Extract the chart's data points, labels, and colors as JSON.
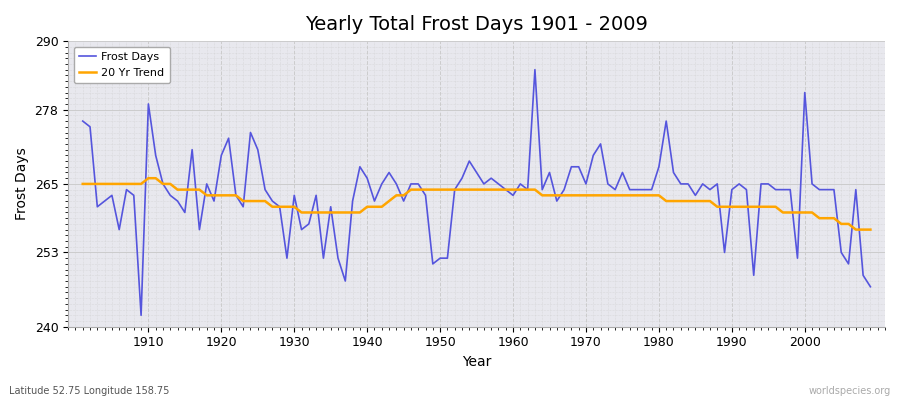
{
  "title": "Yearly Total Frost Days 1901 - 2009",
  "xlabel": "Year",
  "ylabel": "Frost Days",
  "subtitle_left": "Latitude 52.75 Longitude 158.75",
  "subtitle_right": "worldspecies.org",
  "ylim": [
    240,
    290
  ],
  "yticks": [
    240,
    253,
    265,
    278,
    290
  ],
  "line_color": "#5555dd",
  "trend_color": "#FFA500",
  "bg_color": "#e8e8ee",
  "legend_frost": "Frost Days",
  "legend_trend": "20 Yr Trend",
  "years": [
    1901,
    1902,
    1903,
    1904,
    1905,
    1906,
    1907,
    1908,
    1909,
    1910,
    1911,
    1912,
    1913,
    1914,
    1915,
    1916,
    1917,
    1918,
    1919,
    1920,
    1921,
    1922,
    1923,
    1924,
    1925,
    1926,
    1927,
    1928,
    1929,
    1930,
    1931,
    1932,
    1933,
    1934,
    1935,
    1936,
    1937,
    1938,
    1939,
    1940,
    1941,
    1942,
    1943,
    1944,
    1945,
    1946,
    1947,
    1948,
    1949,
    1950,
    1951,
    1952,
    1953,
    1954,
    1955,
    1956,
    1957,
    1958,
    1959,
    1960,
    1961,
    1962,
    1963,
    1964,
    1965,
    1966,
    1967,
    1968,
    1969,
    1970,
    1971,
    1972,
    1973,
    1974,
    1975,
    1976,
    1977,
    1978,
    1979,
    1980,
    1981,
    1982,
    1983,
    1984,
    1985,
    1986,
    1987,
    1988,
    1989,
    1990,
    1991,
    1992,
    1993,
    1994,
    1995,
    1996,
    1997,
    1998,
    1999,
    2000,
    2001,
    2002,
    2003,
    2004,
    2005,
    2006,
    2007,
    2008,
    2009
  ],
  "frost_days": [
    276,
    275,
    261,
    262,
    263,
    257,
    264,
    263,
    242,
    279,
    270,
    265,
    263,
    262,
    260,
    271,
    257,
    265,
    262,
    270,
    273,
    263,
    261,
    274,
    271,
    264,
    262,
    261,
    252,
    263,
    257,
    258,
    263,
    252,
    261,
    252,
    248,
    262,
    268,
    266,
    262,
    265,
    267,
    265,
    262,
    265,
    265,
    263,
    251,
    252,
    252,
    264,
    266,
    269,
    267,
    265,
    266,
    265,
    264,
    263,
    265,
    264,
    285,
    264,
    267,
    262,
    264,
    268,
    268,
    265,
    270,
    272,
    265,
    264,
    267,
    264,
    264,
    264,
    264,
    268,
    276,
    267,
    265,
    265,
    263,
    265,
    264,
    265,
    253,
    264,
    265,
    264,
    249,
    265,
    265,
    264,
    264,
    264,
    252,
    281,
    265,
    264,
    264,
    264,
    253,
    251,
    264,
    249,
    247
  ],
  "trend_years": [
    1901,
    1902,
    1903,
    1904,
    1905,
    1906,
    1907,
    1908,
    1909,
    1910,
    1911,
    1912,
    1913,
    1914,
    1915,
    1916,
    1917,
    1918,
    1919,
    1920,
    1921,
    1922,
    1923,
    1924,
    1925,
    1926,
    1927,
    1928,
    1929,
    1930,
    1931,
    1932,
    1933,
    1934,
    1935,
    1936,
    1937,
    1938,
    1939,
    1940,
    1941,
    1942,
    1943,
    1944,
    1945,
    1946,
    1947,
    1948,
    1949,
    1950,
    1951,
    1952,
    1953,
    1954,
    1955,
    1956,
    1957,
    1958,
    1959,
    1960,
    1961,
    1962,
    1963,
    1964,
    1965,
    1966,
    1967,
    1968,
    1969,
    1970,
    1971,
    1972,
    1973,
    1974,
    1975,
    1976,
    1977,
    1978,
    1979,
    1980,
    1981,
    1982,
    1983,
    1984,
    1985,
    1986,
    1987,
    1988,
    1989,
    1990,
    1991,
    1992,
    1993,
    1994,
    1995,
    1996,
    1997,
    1998,
    1999,
    2000,
    2001,
    2002,
    2003,
    2004,
    2005,
    2006,
    2007,
    2008,
    2009
  ],
  "trend_vals": [
    265,
    265,
    265,
    265,
    265,
    265,
    265,
    265,
    265,
    266,
    266,
    265,
    265,
    264,
    264,
    264,
    264,
    263,
    263,
    263,
    263,
    263,
    262,
    262,
    262,
    262,
    261,
    261,
    261,
    261,
    260,
    260,
    260,
    260,
    260,
    260,
    260,
    260,
    260,
    261,
    261,
    261,
    262,
    263,
    263,
    264,
    264,
    264,
    264,
    264,
    264,
    264,
    264,
    264,
    264,
    264,
    264,
    264,
    264,
    264,
    264,
    264,
    264,
    263,
    263,
    263,
    263,
    263,
    263,
    263,
    263,
    263,
    263,
    263,
    263,
    263,
    263,
    263,
    263,
    263,
    262,
    262,
    262,
    262,
    262,
    262,
    262,
    261,
    261,
    261,
    261,
    261,
    261,
    261,
    261,
    261,
    260,
    260,
    260,
    260,
    260,
    259,
    259,
    259,
    258,
    258,
    257,
    257,
    257
  ]
}
